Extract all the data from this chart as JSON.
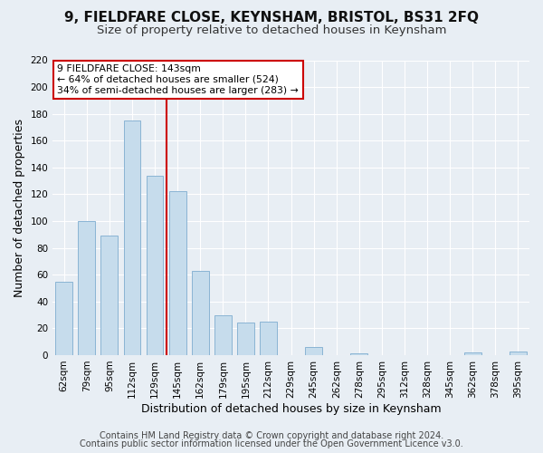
{
  "title": "9, FIELDFARE CLOSE, KEYNSHAM, BRISTOL, BS31 2FQ",
  "subtitle": "Size of property relative to detached houses in Keynsham",
  "xlabel": "Distribution of detached houses by size in Keynsham",
  "ylabel": "Number of detached properties",
  "bar_color": "#c6dcec",
  "bar_edge_color": "#8ab4d4",
  "categories": [
    "62sqm",
    "79sqm",
    "95sqm",
    "112sqm",
    "129sqm",
    "145sqm",
    "162sqm",
    "179sqm",
    "195sqm",
    "212sqm",
    "229sqm",
    "245sqm",
    "262sqm",
    "278sqm",
    "295sqm",
    "312sqm",
    "328sqm",
    "345sqm",
    "362sqm",
    "378sqm",
    "395sqm"
  ],
  "values": [
    55,
    100,
    89,
    175,
    134,
    122,
    63,
    30,
    24,
    25,
    0,
    6,
    0,
    1,
    0,
    0,
    0,
    0,
    2,
    0,
    3
  ],
  "vline_color": "#cc0000",
  "annotation_title": "9 FIELDFARE CLOSE: 143sqm",
  "annotation_line1": "← 64% of detached houses are smaller (524)",
  "annotation_line2": "34% of semi-detached houses are larger (283) →",
  "ylim": [
    0,
    220
  ],
  "yticks": [
    0,
    20,
    40,
    60,
    80,
    100,
    120,
    140,
    160,
    180,
    200,
    220
  ],
  "footnote1": "Contains HM Land Registry data © Crown copyright and database right 2024.",
  "footnote2": "Contains public sector information licensed under the Open Government Licence v3.0.",
  "background_color": "#e8eef4",
  "grid_color": "#ffffff",
  "title_fontsize": 11,
  "subtitle_fontsize": 9.5,
  "label_fontsize": 9,
  "tick_fontsize": 7.5,
  "footnote_fontsize": 7,
  "bar_width": 0.75,
  "vline_index": 4.5
}
